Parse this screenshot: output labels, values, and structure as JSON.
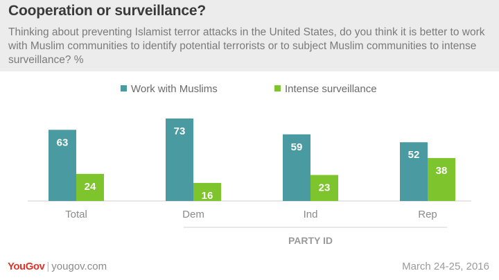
{
  "header": {
    "title": "Cooperation or surveillance?",
    "subtitle": "Thinking about preventing Islamist terror attacks in the United States, do you think it is better to work with Muslim communities to identify potential terrorists or to subject Muslim communities to intense surveillance? %"
  },
  "colors": {
    "series_1": "#4a9aa1",
    "series_2": "#7ec42d"
  },
  "chart_data": {
    "type": "bar",
    "categories": [
      "Total",
      "Dem",
      "Ind",
      "Rep"
    ],
    "series": [
      {
        "name": "Work with Muslims",
        "values": [
          63,
          73,
          59,
          52
        ]
      },
      {
        "name": "Intense surveillance",
        "values": [
          24,
          16,
          23,
          38
        ]
      }
    ],
    "group_label": "PARTY ID",
    "ylim": [
      0,
      73
    ],
    "grid": false,
    "legend": "top-center",
    "data_labels": true
  },
  "footer": {
    "brand": "YouGov",
    "url": "yougov.com",
    "date": "March 24-25, 2016"
  }
}
